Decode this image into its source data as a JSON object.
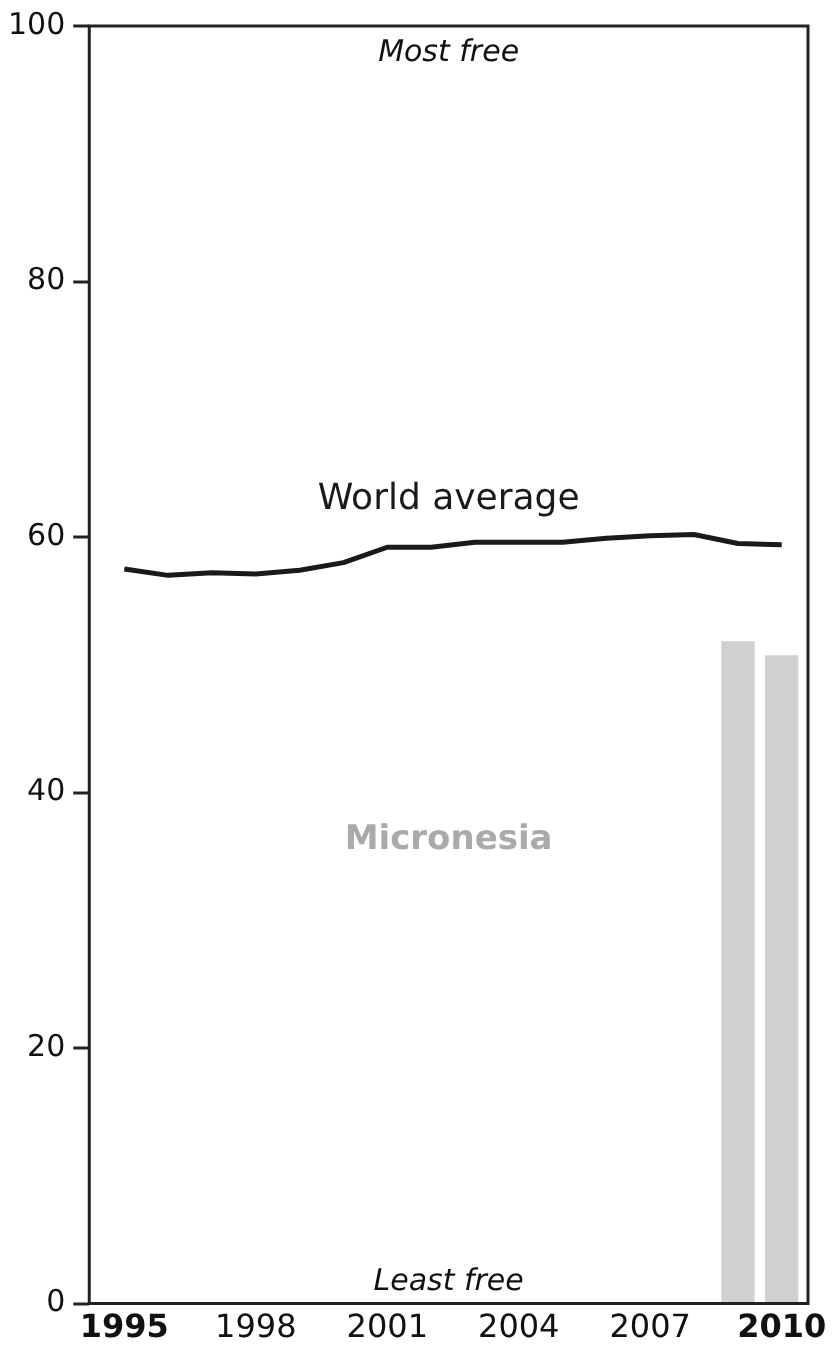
{
  "chart_data": {
    "type": "line",
    "x": [
      1995,
      1996,
      1997,
      1998,
      1999,
      2000,
      2001,
      2002,
      2003,
      2004,
      2005,
      2006,
      2007,
      2008,
      2009,
      2010
    ],
    "series": [
      {
        "name": "World average",
        "color": "#1a1a1a",
        "values": [
          57.5,
          57.0,
          57.2,
          57.1,
          57.4,
          58.0,
          59.2,
          59.2,
          59.6,
          59.6,
          59.6,
          59.9,
          60.1,
          60.2,
          59.5,
          59.4
        ]
      },
      {
        "name": "Micronesia",
        "type": "bar",
        "color": "#d0d0d2",
        "x": [
          2009,
          2010
        ],
        "values": [
          51.8,
          50.7
        ]
      }
    ],
    "xlim": [
      1994.2,
      2010.6
    ],
    "xticks": [
      1995,
      1998,
      2001,
      2004,
      2007,
      2010
    ],
    "ylim": [
      0,
      100
    ],
    "yticks": [
      0,
      20,
      40,
      60,
      80,
      100
    ],
    "annotations": [
      "Most free",
      "Least free"
    ],
    "grid": false,
    "legend": false,
    "marker": "none",
    "line_style": "solid"
  }
}
